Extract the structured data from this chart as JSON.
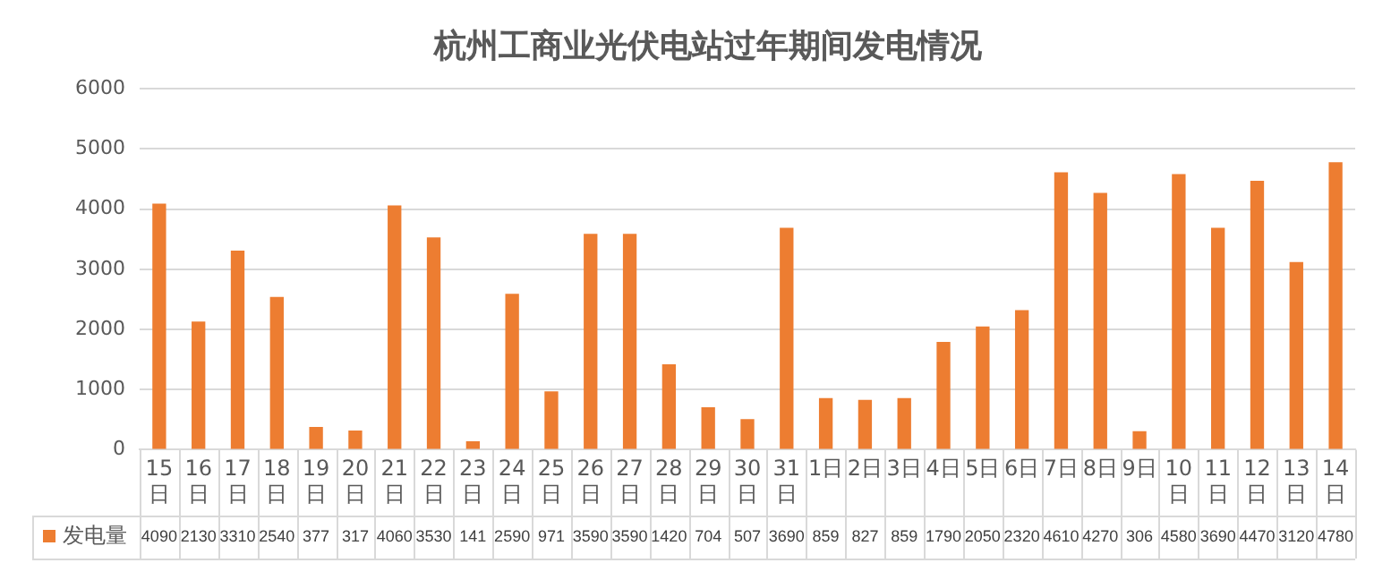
{
  "chart_data": {
    "type": "bar",
    "title": "杭州工商业光伏电站过年期间发电情况",
    "categories": [
      "15日",
      "16日",
      "17日",
      "18日",
      "19日",
      "20日",
      "21日",
      "22日",
      "23日",
      "24日",
      "25日",
      "26日",
      "27日",
      "28日",
      "29日",
      "30日",
      "31日",
      "1日",
      "2日",
      "3日",
      "4日",
      "5日",
      "6日",
      "7日",
      "8日",
      "9日",
      "10日",
      "11日",
      "12日",
      "13日",
      "14日"
    ],
    "series": [
      {
        "name": "发电量",
        "color": "#ed7d31",
        "values": [
          4090,
          2130,
          3310,
          2540,
          377,
          317,
          4060,
          3530,
          141,
          2590,
          971,
          3590,
          3590,
          1420,
          704,
          507,
          3690,
          859,
          827,
          859,
          1790,
          2050,
          2320,
          4610,
          4270,
          306,
          4580,
          3690,
          4470,
          3120,
          4780
        ]
      }
    ],
    "ylim": [
      0,
      6000
    ],
    "yticks": [
      0,
      1000,
      2000,
      3000,
      4000,
      5000,
      6000
    ],
    "grid": "y",
    "legend": "bottom left",
    "data_labels": true
  }
}
